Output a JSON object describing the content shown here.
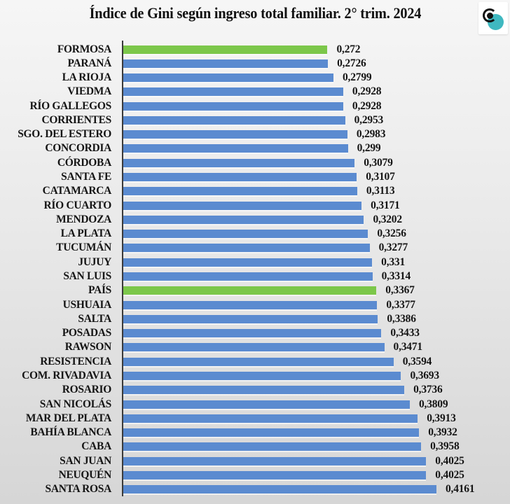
{
  "header": {
    "title": "Índice de Gini según ingreso total familiar. 2° trim. 2024",
    "logo_icon": "magnifier-circle-logo-icon"
  },
  "colors": {
    "bar": "#5b8bd0",
    "highlight": "#7cc74a",
    "axis": "#3a3a3a",
    "text": "#151515"
  },
  "chart_data": {
    "type": "bar",
    "orientation": "horizontal",
    "title": "Índice de Gini según ingreso total familiar. 2° trim. 2024",
    "xlabel": "",
    "ylabel": "",
    "grid": false,
    "legend": null,
    "xlim": [
      0,
      0.42
    ],
    "categories": [
      "FORMOSA",
      "PARANÁ",
      "LA RIOJA",
      "VIEDMA",
      "RÍO GALLEGOS",
      "CORRIENTES",
      "SGO. DEL ESTERO",
      "CONCORDIA",
      "CÓRDOBA",
      "SANTA FE",
      "CATAMARCA",
      "RÍO CUARTO",
      "MENDOZA",
      "LA PLATA",
      "TUCUMÁN",
      "JUJUY",
      "SAN LUIS",
      "PAÍS",
      "USHUAIA",
      "SALTA",
      "POSADAS",
      "RAWSON",
      "RESISTENCIA",
      "COM. RIVADAVIA",
      "ROSARIO",
      "SAN NICOLÁS",
      "MAR DEL PLATA",
      "BAHÍA BLANCA",
      "CABA",
      "SAN JUAN",
      "NEUQUÉN",
      "SANTA ROSA"
    ],
    "values": [
      0.272,
      0.2726,
      0.2799,
      0.2928,
      0.2928,
      0.2953,
      0.2983,
      0.299,
      0.3079,
      0.3107,
      0.3113,
      0.3171,
      0.3202,
      0.3256,
      0.3277,
      0.331,
      0.3314,
      0.3367,
      0.3377,
      0.3386,
      0.3433,
      0.3471,
      0.3594,
      0.3693,
      0.3736,
      0.3809,
      0.3913,
      0.3932,
      0.3958,
      0.4025,
      0.4025,
      0.4161
    ],
    "value_labels": [
      "0,272",
      "0,2726",
      "0,2799",
      "0,2928",
      "0,2928",
      "0,2953",
      "0,2983",
      "0,299",
      "0,3079",
      "0,3107",
      "0,3113",
      "0,3171",
      "0,3202",
      "0,3256",
      "0,3277",
      "0,331",
      "0,3314",
      "0,3367",
      "0,3377",
      "0,3386",
      "0,3433",
      "0,3471",
      "0,3594",
      "0,3693",
      "0,3736",
      "0,3809",
      "0,3913",
      "0,3932",
      "0,3958",
      "0,4025",
      "0,4025",
      "0,4161"
    ],
    "highlighted": [
      "FORMOSA",
      "PAÍS"
    ]
  }
}
